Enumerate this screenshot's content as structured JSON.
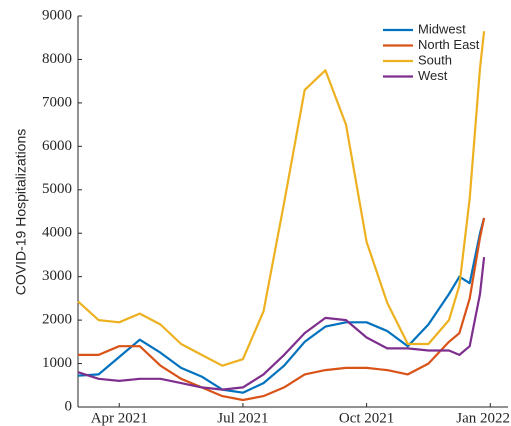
{
  "chart_data": {
    "type": "line",
    "y_label": "COVID-19 Hospitalizations",
    "x": [
      2.0,
      2.5,
      3.0,
      3.5,
      4.0,
      4.5,
      5.0,
      5.5,
      6.0,
      6.5,
      7.0,
      7.5,
      8.0,
      8.5,
      9.0,
      9.5,
      10.0,
      10.5,
      11.0,
      11.25,
      11.5,
      11.75,
      11.85
    ],
    "series": [
      {
        "name": "Midwest",
        "color": "#0072BD",
        "values": [
          720,
          750,
          1150,
          1550,
          1250,
          900,
          700,
          400,
          330,
          550,
          950,
          1500,
          1850,
          1950,
          1950,
          1750,
          1400,
          1900,
          2600,
          3000,
          2850,
          4000,
          4350
        ]
      },
      {
        "name": "North East",
        "color": "#D95319",
        "values": [
          1200,
          1200,
          1400,
          1400,
          950,
          650,
          450,
          250,
          160,
          250,
          450,
          750,
          850,
          900,
          900,
          850,
          750,
          1000,
          1500,
          1700,
          2500,
          3900,
          4350
        ]
      },
      {
        "name": "South",
        "color": "#EDB120",
        "values": [
          2430,
          2000,
          1950,
          2150,
          1900,
          1450,
          1200,
          950,
          1100,
          2200,
          4700,
          7300,
          7750,
          6500,
          3800,
          2400,
          1450,
          1450,
          2000,
          2800,
          4800,
          7800,
          8650
        ]
      },
      {
        "name": "West",
        "color": "#7E2F8E",
        "values": [
          800,
          650,
          600,
          650,
          650,
          550,
          450,
          400,
          450,
          750,
          1200,
          1700,
          2050,
          2000,
          1600,
          1350,
          1350,
          1300,
          1300,
          1200,
          1400,
          2600,
          3450
        ]
      }
    ],
    "xlim": [
      2.0,
      12.43
    ],
    "xticks": [
      {
        "value": 3,
        "label": "Apr 2021"
      },
      {
        "value": 6,
        "label": "Jul 2021"
      },
      {
        "value": 9,
        "label": "Oct 2021"
      },
      {
        "value": 12,
        "label": "Jan 2022"
      }
    ],
    "ylim": [
      0,
      9000
    ],
    "yticks": [
      0,
      1000,
      2000,
      3000,
      4000,
      5000,
      6000,
      7000,
      8000,
      9000
    ],
    "legend": "upper right"
  }
}
